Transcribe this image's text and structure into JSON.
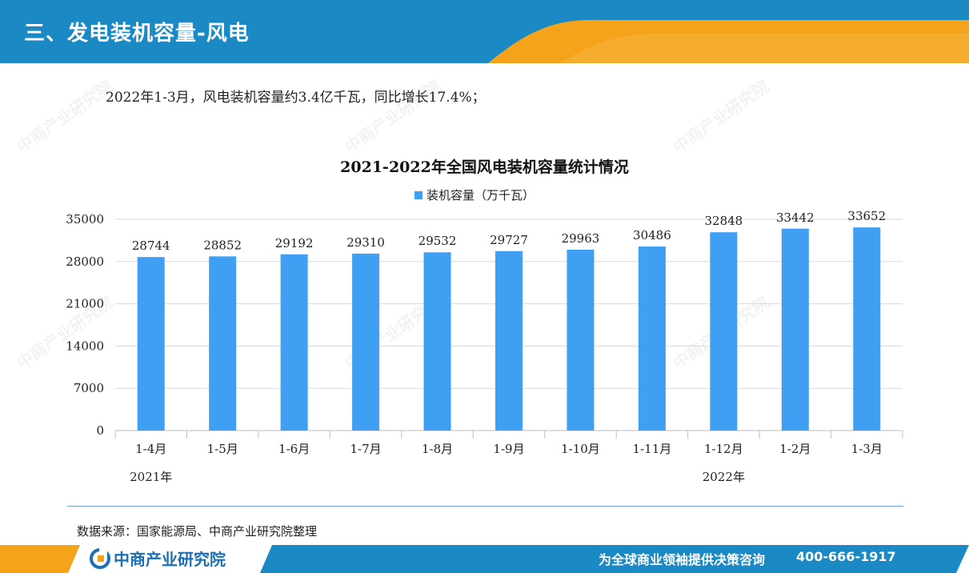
{
  "header": {
    "title": "三、发电装机容量-风电"
  },
  "summary": "2022年1-3月，风电装机容量约3.4亿千瓦，同比增长17.4%；",
  "chart_data": {
    "type": "bar",
    "title": "2021-2022年全国风电装机容量统计情况",
    "categories": [
      "1-4月",
      "1-5月",
      "1-6月",
      "1-7月",
      "1-8月",
      "1-9月",
      "1-10月",
      "1-11月",
      "1-12月",
      "1-2月",
      "1-3月"
    ],
    "year_labels": [
      {
        "label": "2021年",
        "category_index": 0
      },
      {
        "label": "2022年",
        "category_index": 8
      }
    ],
    "series": [
      {
        "name": "装机容量（万千瓦）",
        "color": "#3FA0F3",
        "values": [
          28744,
          28852,
          29192,
          29310,
          29532,
          29727,
          29963,
          30486,
          32848,
          33442,
          33652
        ]
      }
    ],
    "ylim": [
      0,
      35000
    ],
    "yticks": [
      0,
      7000,
      14000,
      21000,
      28000,
      35000
    ],
    "grid": true,
    "legend_position": "top"
  },
  "source": "数据来源：国家能源局、中商产业研究院整理",
  "footer": {
    "logo_text": "中商产业研究院",
    "slogan": "为全球商业领袖提供决策咨询",
    "phone": "400-666-1917"
  },
  "watermark": "中商产业研究院",
  "colors": {
    "header_blue": "#1B8AC4",
    "accent_orange": "#F5A31A",
    "bar": "#3FA0F3"
  }
}
